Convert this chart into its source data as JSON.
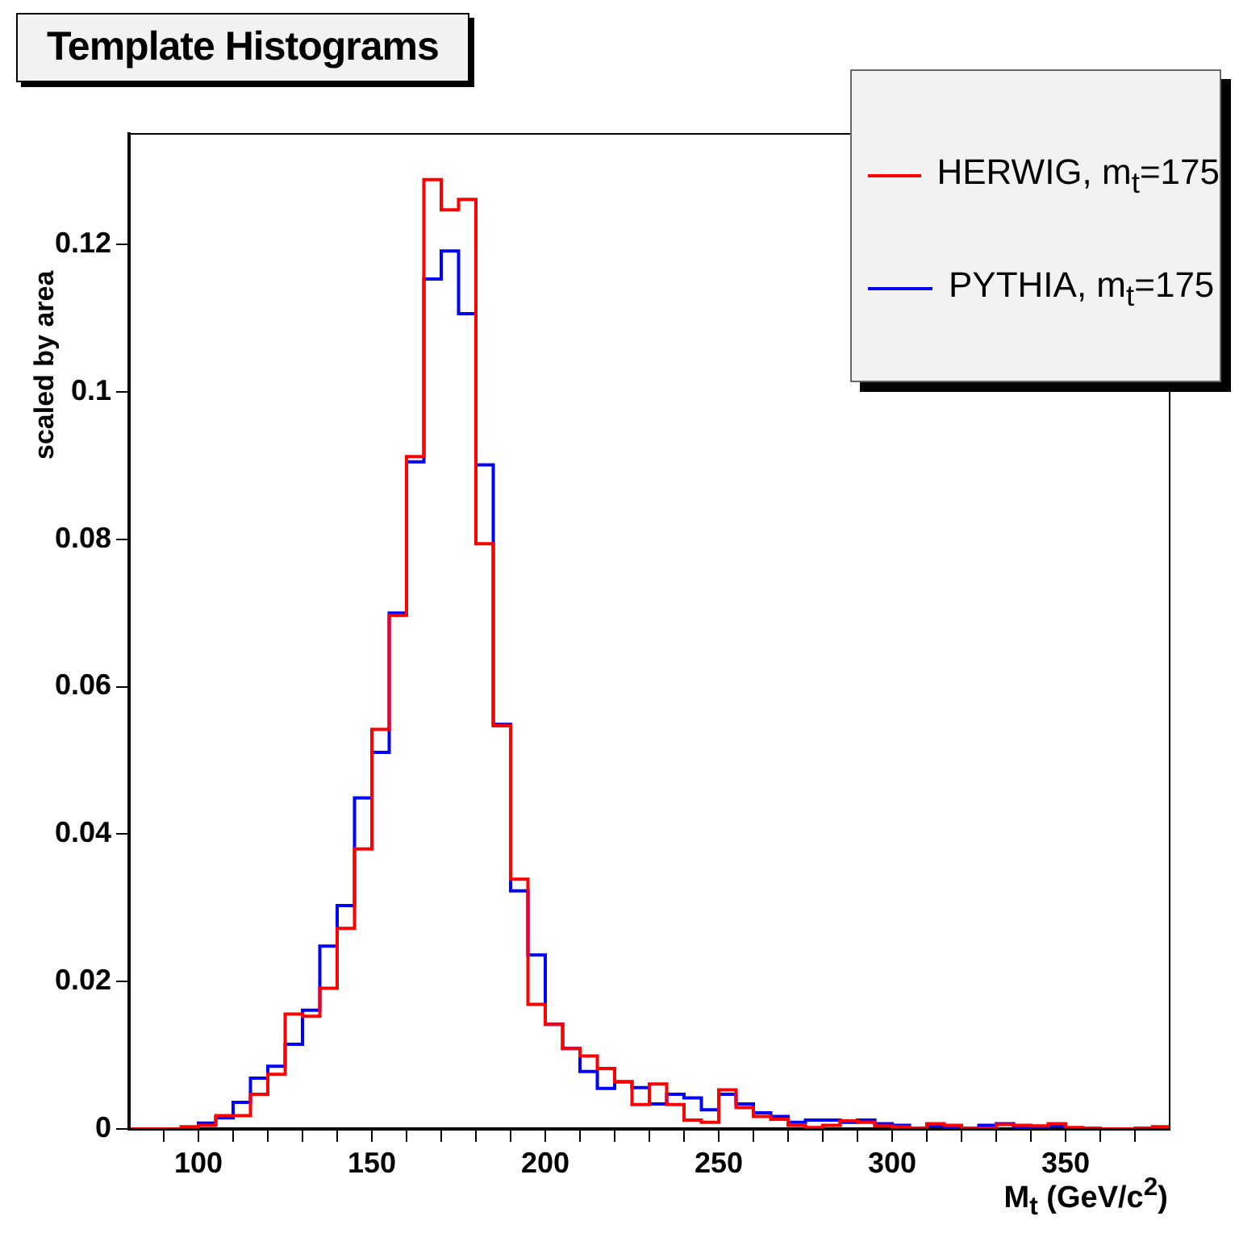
{
  "chart_data": {
    "type": "histogram",
    "title": "Template Histograms",
    "xlabel": "M$_{t}$ (GeV/c$^{2}$)",
    "ylabel": "scaled by area",
    "bins": [
      80,
      85,
      90,
      95,
      100,
      105,
      110,
      115,
      120,
      125,
      130,
      135,
      140,
      145,
      150,
      155,
      160,
      165,
      170,
      175,
      180,
      185,
      190,
      195,
      200,
      205,
      210,
      215,
      220,
      225,
      230,
      235,
      240,
      245,
      250,
      255,
      260,
      265,
      270,
      275,
      280,
      285,
      290,
      295,
      300,
      305,
      310,
      315,
      320,
      325,
      330,
      335,
      340,
      345,
      350,
      355,
      360,
      365,
      370,
      375,
      380
    ],
    "series": [
      {
        "name": "HERWIG, m$_{t}$=175",
        "color": "#ff0000",
        "values": [
          0,
          0,
          0,
          0.0003,
          0.0005,
          0.0018,
          0.0018,
          0.0047,
          0.0074,
          0.0156,
          0.0153,
          0.0191,
          0.0272,
          0.038,
          0.0542,
          0.0697,
          0.0912,
          0.1288,
          0.1247,
          0.1261,
          0.0794,
          0.0547,
          0.0339,
          0.0169,
          0.0142,
          0.0109,
          0.0099,
          0.0082,
          0.0064,
          0.0033,
          0.0061,
          0.0033,
          0.0012,
          0.0009,
          0.0053,
          0.0029,
          0.0017,
          0.0013,
          0.0005,
          0.0002,
          0.0005,
          0.0011,
          0.0009,
          0.0004,
          0.0003,
          0.0001,
          0.0007,
          0.0005,
          0.0001,
          0.0001,
          0.0006,
          0.0005,
          0.0004,
          0.0007,
          0.0002,
          0.0001,
          0,
          0,
          0.0001,
          0.0003
        ]
      },
      {
        "name": "PYTHIA, m$_{t}$=175",
        "color": "#0000ff",
        "values": [
          0,
          0,
          0,
          0,
          0.0008,
          0.0015,
          0.0036,
          0.0069,
          0.0085,
          0.0115,
          0.0161,
          0.0248,
          0.0303,
          0.0449,
          0.0511,
          0.07,
          0.0905,
          0.1153,
          0.1191,
          0.1106,
          0.0901,
          0.0549,
          0.0323,
          0.0236,
          0.0142,
          0.0109,
          0.0078,
          0.0055,
          0.0064,
          0.0056,
          0.0034,
          0.0047,
          0.0042,
          0.0026,
          0.0047,
          0.0034,
          0.0022,
          0.0017,
          0.0009,
          0.0012,
          0.0012,
          0.0009,
          0.0012,
          0.0007,
          0.0005,
          0.0001,
          0.0004,
          0.0001,
          0.0001,
          0.0005,
          0.0007,
          0.0002,
          0.0002,
          0.0004,
          0.0001,
          0.0001,
          0,
          0,
          0,
          0.0001
        ]
      }
    ],
    "xlim": [
      80,
      380
    ],
    "xticks": [
      {
        "value": 90,
        "label": null
      },
      100,
      {
        "value": 110,
        "label": null
      },
      {
        "value": 120,
        "label": null
      },
      {
        "value": 130,
        "label": null
      },
      {
        "value": 140,
        "label": null
      },
      150,
      {
        "value": 160,
        "label": null
      },
      {
        "value": 170,
        "label": null
      },
      {
        "value": 180,
        "label": null
      },
      {
        "value": 190,
        "label": null
      },
      200,
      {
        "value": 210,
        "label": null
      },
      {
        "value": 220,
        "label": null
      },
      {
        "value": 230,
        "label": null
      },
      {
        "value": 240,
        "label": null
      },
      250,
      {
        "value": 260,
        "label": null
      },
      {
        "value": 270,
        "label": null
      },
      {
        "value": 280,
        "label": null
      },
      {
        "value": 290,
        "label": null
      },
      300,
      {
        "value": 310,
        "label": null
      },
      {
        "value": 320,
        "label": null
      },
      {
        "value": 330,
        "label": null
      },
      {
        "value": 340,
        "label": null
      },
      350,
      {
        "value": 360,
        "label": null
      },
      {
        "value": 370,
        "label": null
      }
    ],
    "ylim": [
      0,
      0.135
    ],
    "yticks": [
      {
        "value": 0,
        "label": "0"
      },
      0.02,
      0.04,
      0.06,
      0.08,
      0.1,
      0.12
    ],
    "grid": false,
    "legend": "top right"
  }
}
